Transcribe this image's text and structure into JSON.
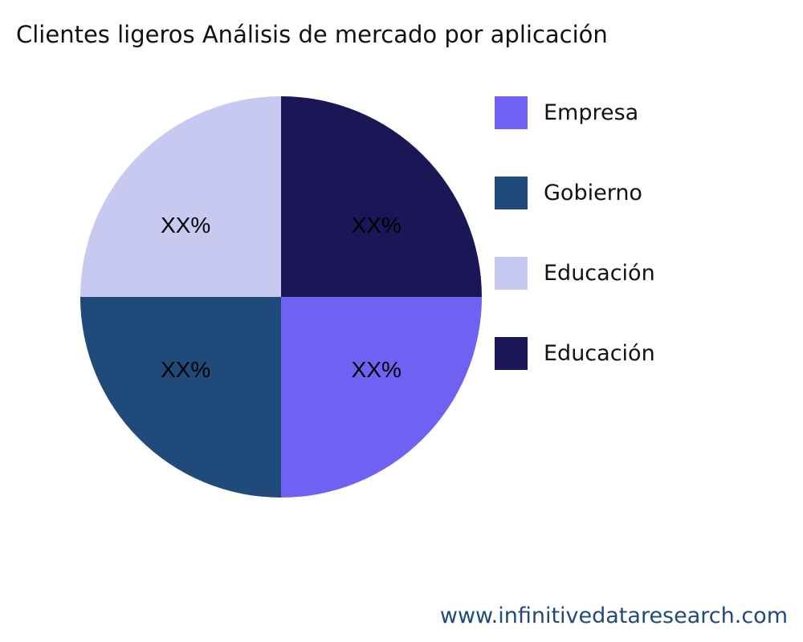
{
  "chart_data": {
    "type": "pie",
    "title": "Clientes ligeros Análisis de mercado por aplicación",
    "slices": [
      {
        "name": "Empresa",
        "value": 25,
        "label": "XX%",
        "color": "#6f61f2"
      },
      {
        "name": "Gobierno",
        "value": 25,
        "label": "XX%",
        "color": "#1f4a7a"
      },
      {
        "name": "Educación",
        "value": 25,
        "label": "XX%",
        "color": "#c8c9f0"
      },
      {
        "name": "Educación",
        "value": 25,
        "label": "XX%",
        "color": "#1b1655"
      }
    ],
    "direction": "clockwise",
    "start": "3 o'clock",
    "legend_position": "right"
  },
  "footer": "www.infinitivedataresearch.com"
}
